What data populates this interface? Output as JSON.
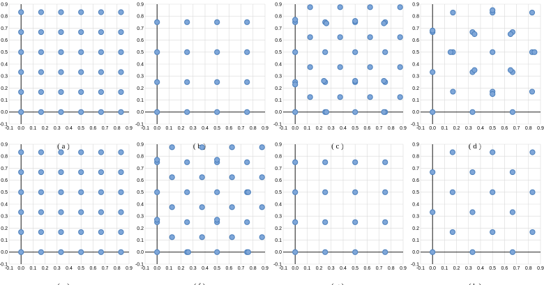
{
  "style": {
    "point_fill": "#7ea6d8",
    "point_stroke": "#4a7ebb",
    "grid": "#d9d9d9",
    "axis": "#000000"
  },
  "chart_data": [
    {
      "type": "scatter",
      "caption": "( a )",
      "xlim": [
        -0.1,
        0.9
      ],
      "ylim": [
        -0.1,
        0.9
      ],
      "xticks": [
        "-0.1",
        "0.0",
        "0.1",
        "0.2",
        "0.3",
        "0.4",
        "0.5",
        "0.6",
        "0.7",
        "0.8",
        "0.9"
      ],
      "yticks": [
        "-0.1",
        "0.0",
        "0.1",
        "0.2",
        "0.3",
        "0.4",
        "0.5",
        "0.6",
        "0.7",
        "0.8",
        "0.9"
      ],
      "grid": true,
      "points": [
        [
          0,
          0
        ],
        [
          0.167,
          0
        ],
        [
          0.333,
          0
        ],
        [
          0.5,
          0
        ],
        [
          0.667,
          0
        ],
        [
          0.833,
          0
        ],
        [
          0,
          0.167
        ],
        [
          0.167,
          0.167
        ],
        [
          0.333,
          0.167
        ],
        [
          0.5,
          0.167
        ],
        [
          0.667,
          0.167
        ],
        [
          0.833,
          0.167
        ],
        [
          0,
          0.333
        ],
        [
          0.167,
          0.333
        ],
        [
          0.333,
          0.333
        ],
        [
          0.5,
          0.333
        ],
        [
          0.667,
          0.333
        ],
        [
          0.833,
          0.333
        ],
        [
          0,
          0.5
        ],
        [
          0.167,
          0.5
        ],
        [
          0.333,
          0.5
        ],
        [
          0.5,
          0.5
        ],
        [
          0.667,
          0.5
        ],
        [
          0.833,
          0.5
        ],
        [
          0,
          0.667
        ],
        [
          0.167,
          0.667
        ],
        [
          0.333,
          0.667
        ],
        [
          0.5,
          0.667
        ],
        [
          0.667,
          0.667
        ],
        [
          0.833,
          0.667
        ],
        [
          0,
          0.833
        ],
        [
          0.167,
          0.833
        ],
        [
          0.333,
          0.833
        ],
        [
          0.5,
          0.833
        ],
        [
          0.667,
          0.833
        ],
        [
          0.833,
          0.833
        ]
      ]
    },
    {
      "type": "scatter",
      "caption": "( b )",
      "xlim": [
        -0.1,
        0.9
      ],
      "ylim": [
        -0.1,
        0.9
      ],
      "xticks": [
        "-0.1",
        "0.0",
        "0.1",
        "0.2",
        "0.3",
        "0.4",
        "0.5",
        "0.6",
        "0.7",
        "0.8",
        "0.9"
      ],
      "yticks": [
        "-0.1",
        "0.0",
        "0.1",
        "0.2",
        "0.3",
        "0.4",
        "0.5",
        "0.6",
        "0.7",
        "0.8",
        "0.9"
      ],
      "grid": true,
      "points": [
        [
          0,
          0
        ],
        [
          0.25,
          0
        ],
        [
          0.5,
          0
        ],
        [
          0.75,
          0
        ],
        [
          0,
          0.25
        ],
        [
          0.25,
          0.25
        ],
        [
          0.5,
          0.25
        ],
        [
          0.75,
          0.25
        ],
        [
          0,
          0.5
        ],
        [
          0.25,
          0.5
        ],
        [
          0.5,
          0.5
        ],
        [
          0.75,
          0.5
        ],
        [
          0,
          0.75
        ],
        [
          0.25,
          0.75
        ],
        [
          0.5,
          0.75
        ],
        [
          0.75,
          0.75
        ]
      ]
    },
    {
      "type": "scatter",
      "caption": "( c )",
      "xlim": [
        -0.1,
        0.9
      ],
      "ylim": [
        -0.1,
        0.9
      ],
      "xticks": [
        "-0.1",
        "0.0",
        "0.1",
        "0.2",
        "0.3",
        "0.4",
        "0.5",
        "0.6",
        "0.7",
        "0.8",
        "0.9"
      ],
      "yticks": [
        "-0.1",
        "0.0",
        "0.1",
        "0.2",
        "0.3",
        "0.4",
        "0.5",
        "0.6",
        "0.7",
        "0.8",
        "0.9"
      ],
      "grid": true,
      "points": [
        [
          0,
          0
        ],
        [
          0,
          0.25
        ],
        [
          0,
          0.23
        ],
        [
          0,
          0.5
        ],
        [
          0,
          0.75
        ],
        [
          0,
          0.77
        ],
        [
          0.25,
          0
        ],
        [
          0.26,
          0
        ],
        [
          0.5,
          0
        ],
        [
          0.75,
          0
        ],
        [
          0.74,
          0
        ],
        [
          0.125,
          0.125
        ],
        [
          0.375,
          0.125
        ],
        [
          0.625,
          0.125
        ],
        [
          0.875,
          0.125
        ],
        [
          0.25,
          0.25
        ],
        [
          0.24,
          0.26
        ],
        [
          0.5,
          0.25
        ],
        [
          0.5,
          0.26
        ],
        [
          0.75,
          0.25
        ],
        [
          0.74,
          0.26
        ],
        [
          0.125,
          0.375
        ],
        [
          0.375,
          0.375
        ],
        [
          0.625,
          0.375
        ],
        [
          0.875,
          0.375
        ],
        [
          0.25,
          0.5
        ],
        [
          0.5,
          0.5
        ],
        [
          0.75,
          0.5
        ],
        [
          0.125,
          0.625
        ],
        [
          0.375,
          0.625
        ],
        [
          0.625,
          0.625
        ],
        [
          0.875,
          0.625
        ],
        [
          0.25,
          0.75
        ],
        [
          0.26,
          0.74
        ],
        [
          0.5,
          0.75
        ],
        [
          0.5,
          0.76
        ],
        [
          0.75,
          0.75
        ],
        [
          0.74,
          0.74
        ],
        [
          0.125,
          0.875
        ],
        [
          0.375,
          0.875
        ],
        [
          0.625,
          0.875
        ],
        [
          0.875,
          0.875
        ]
      ]
    },
    {
      "type": "scatter",
      "caption": "( d )",
      "xlim": [
        -0.1,
        0.9
      ],
      "ylim": [
        -0.1,
        0.9
      ],
      "xticks": [
        "-0.1",
        "0.0",
        "0.1",
        "0.2",
        "0.3",
        "0.4",
        "0.5",
        "0.6",
        "0.7",
        "0.8",
        "0.9"
      ],
      "yticks": [
        "-0.1",
        "0.0",
        "0.1",
        "0.2",
        "0.3",
        "0.4",
        "0.5",
        "0.6",
        "0.7",
        "0.8",
        "0.9"
      ],
      "grid": true,
      "points": [
        [
          0,
          0
        ],
        [
          0.333,
          0
        ],
        [
          0.667,
          0
        ],
        [
          0,
          0.333
        ],
        [
          0,
          0.667
        ],
        [
          0,
          0.68
        ],
        [
          0.17,
          0.17
        ],
        [
          0.5,
          0.17
        ],
        [
          0.5,
          0.15
        ],
        [
          0.83,
          0.17
        ],
        [
          0.17,
          0.5
        ],
        [
          0.15,
          0.5
        ],
        [
          0.5,
          0.5
        ],
        [
          0.83,
          0.5
        ],
        [
          0.85,
          0.5
        ],
        [
          0.17,
          0.83
        ],
        [
          0.5,
          0.83
        ],
        [
          0.5,
          0.85
        ],
        [
          0.83,
          0.83
        ],
        [
          0.333,
          0.333
        ],
        [
          0.35,
          0.35
        ],
        [
          0.667,
          0.333
        ],
        [
          0.65,
          0.35
        ],
        [
          0.333,
          0.667
        ],
        [
          0.35,
          0.65
        ],
        [
          0.667,
          0.667
        ],
        [
          0.65,
          0.65
        ]
      ]
    },
    {
      "type": "scatter",
      "caption": "( e )",
      "xlim": [
        -0.1,
        0.9
      ],
      "ylim": [
        -0.1,
        0.9
      ],
      "xticks": [
        "-0.1",
        "0.0",
        "0.1",
        "0.2",
        "0.3",
        "0.4",
        "0.5",
        "0.6",
        "0.7",
        "0.8",
        "0.9"
      ],
      "yticks": [
        "-0.1",
        "0.0",
        "0.1",
        "0.2",
        "0.3",
        "0.4",
        "0.5",
        "0.6",
        "0.7",
        "0.8",
        "0.9"
      ],
      "grid": true,
      "points": [
        [
          0,
          0
        ],
        [
          0.167,
          0
        ],
        [
          0.333,
          0
        ],
        [
          0.5,
          0
        ],
        [
          0.667,
          0
        ],
        [
          0.833,
          0
        ],
        [
          0,
          0.167
        ],
        [
          0.167,
          0.167
        ],
        [
          0.333,
          0.167
        ],
        [
          0.5,
          0.167
        ],
        [
          0.667,
          0.167
        ],
        [
          0.833,
          0.167
        ],
        [
          0,
          0.333
        ],
        [
          0.167,
          0.333
        ],
        [
          0.333,
          0.333
        ],
        [
          0.5,
          0.333
        ],
        [
          0.667,
          0.333
        ],
        [
          0.833,
          0.333
        ],
        [
          0,
          0.5
        ],
        [
          0.167,
          0.5
        ],
        [
          0.333,
          0.5
        ],
        [
          0.5,
          0.5
        ],
        [
          0.667,
          0.5
        ],
        [
          0.833,
          0.5
        ],
        [
          0,
          0.667
        ],
        [
          0.167,
          0.667
        ],
        [
          0.333,
          0.667
        ],
        [
          0.5,
          0.667
        ],
        [
          0.667,
          0.667
        ],
        [
          0.833,
          0.667
        ],
        [
          0,
          0.833
        ],
        [
          0.167,
          0.833
        ],
        [
          0.333,
          0.833
        ],
        [
          0.5,
          0.833
        ],
        [
          0.667,
          0.833
        ],
        [
          0.833,
          0.833
        ]
      ]
    },
    {
      "type": "scatter",
      "caption": "( f )",
      "xlim": [
        -0.1,
        0.9
      ],
      "ylim": [
        -0.1,
        0.9
      ],
      "xticks": [
        "-0.1",
        "0.0",
        "0.1",
        "0.2",
        "0.3",
        "0.4",
        "0.5",
        "0.6",
        "0.7",
        "0.8",
        "0.9"
      ],
      "yticks": [
        "-0.1",
        "0.0",
        "0.1",
        "0.2",
        "0.3",
        "0.4",
        "0.5",
        "0.6",
        "0.7",
        "0.8",
        "0.9"
      ],
      "grid": true,
      "points": [
        [
          0,
          0
        ],
        [
          0,
          0.25
        ],
        [
          0,
          0.27
        ],
        [
          0,
          0.5
        ],
        [
          0,
          0.75
        ],
        [
          0,
          0.77
        ],
        [
          0.25,
          0
        ],
        [
          0.26,
          0
        ],
        [
          0.5,
          0
        ],
        [
          0.75,
          0
        ],
        [
          0.76,
          0
        ],
        [
          0.125,
          0.125
        ],
        [
          0.375,
          0.125
        ],
        [
          0.625,
          0.125
        ],
        [
          0.875,
          0.125
        ],
        [
          0.25,
          0.25
        ],
        [
          0.5,
          0.25
        ],
        [
          0.5,
          0.27
        ],
        [
          0.75,
          0.25
        ],
        [
          0.125,
          0.375
        ],
        [
          0.375,
          0.375
        ],
        [
          0.625,
          0.375
        ],
        [
          0.875,
          0.375
        ],
        [
          0.25,
          0.5
        ],
        [
          0.5,
          0.5
        ],
        [
          0.75,
          0.5
        ],
        [
          0.76,
          0.5
        ],
        [
          0.125,
          0.625
        ],
        [
          0.375,
          0.625
        ],
        [
          0.625,
          0.625
        ],
        [
          0.875,
          0.625
        ],
        [
          0.25,
          0.75
        ],
        [
          0.5,
          0.75
        ],
        [
          0.5,
          0.77
        ],
        [
          0.75,
          0.75
        ],
        [
          0.125,
          0.875
        ],
        [
          0.375,
          0.875
        ],
        [
          0.625,
          0.875
        ],
        [
          0.875,
          0.875
        ]
      ]
    },
    {
      "type": "scatter",
      "caption": "( g )",
      "xlim": [
        -0.1,
        0.9
      ],
      "ylim": [
        -0.1,
        0.9
      ],
      "xticks": [
        "-0.1",
        "0.0",
        "0.1",
        "0.2",
        "0.3",
        "0.4",
        "0.5",
        "0.6",
        "0.7",
        "0.8",
        "0.9"
      ],
      "yticks": [
        "-0.1",
        "0.0",
        "0.1",
        "0.2",
        "0.3",
        "0.4",
        "0.5",
        "0.6",
        "0.7",
        "0.8",
        "0.9"
      ],
      "grid": true,
      "points": [
        [
          0,
          0
        ],
        [
          0.25,
          0
        ],
        [
          0.5,
          0
        ],
        [
          0.75,
          0
        ],
        [
          0,
          0.25
        ],
        [
          0.25,
          0.25
        ],
        [
          0.5,
          0.25
        ],
        [
          0.75,
          0.25
        ],
        [
          0,
          0.5
        ],
        [
          0.25,
          0.5
        ],
        [
          0.5,
          0.5
        ],
        [
          0.75,
          0.5
        ],
        [
          0,
          0.75
        ],
        [
          0.25,
          0.75
        ],
        [
          0.5,
          0.75
        ],
        [
          0.75,
          0.75
        ]
      ]
    },
    {
      "type": "scatter",
      "caption": "( h )",
      "xlim": [
        -0.1,
        0.9
      ],
      "ylim": [
        -0.1,
        0.9
      ],
      "xticks": [
        "-0.1",
        "0.0",
        "0.1",
        "0.2",
        "0.3",
        "0.4",
        "0.5",
        "0.6",
        "0.7",
        "0.8",
        "0.9"
      ],
      "yticks": [
        "-0.1",
        "0.0",
        "0.1",
        "0.2",
        "0.3",
        "0.4",
        "0.5",
        "0.6",
        "0.7",
        "0.8",
        "0.9"
      ],
      "grid": true,
      "points": [
        [
          0,
          0
        ],
        [
          0.333,
          0
        ],
        [
          0.667,
          0
        ],
        [
          0,
          0.333
        ],
        [
          0,
          0.667
        ],
        [
          0.167,
          0.167
        ],
        [
          0.5,
          0.167
        ],
        [
          0.833,
          0.167
        ],
        [
          0.167,
          0.5
        ],
        [
          0.5,
          0.5
        ],
        [
          0.833,
          0.5
        ],
        [
          0.167,
          0.833
        ],
        [
          0.5,
          0.833
        ],
        [
          0.833,
          0.833
        ],
        [
          0.333,
          0.333
        ],
        [
          0.667,
          0.333
        ],
        [
          0.333,
          0.667
        ],
        [
          0.667,
          0.667
        ]
      ]
    }
  ]
}
